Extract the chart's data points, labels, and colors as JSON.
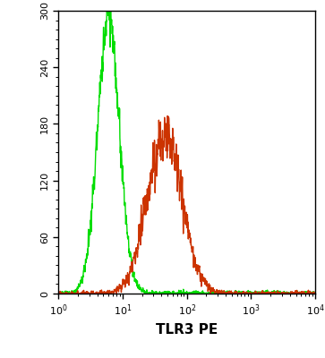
{
  "title": "",
  "xlabel": "TLR3 PE",
  "ylabel": "",
  "xlim_log": [
    1.0,
    10000.0
  ],
  "ylim": [
    0,
    300
  ],
  "yticks": [
    0,
    60,
    120,
    180,
    240,
    300
  ],
  "green_peak_x": 6.0,
  "green_peak_y": 295,
  "green_sigma_log": 0.17,
  "red_peak_x": 45,
  "red_peak_y": 170,
  "red_sigma_log": 0.27,
  "green_color": "#00dd00",
  "red_color": "#cc3300",
  "bg_color": "#ffffff",
  "plot_bg_color": "#ffffff",
  "xlabel_fontsize": 11,
  "xlabel_fontweight": "bold",
  "tick_fontsize": 8,
  "ytick_rotation": 90,
  "figsize": [
    3.63,
    4.0
  ],
  "dpi": 100,
  "line_width": 1.0,
  "noise_amplitude": 3.5,
  "noise_freq": 80
}
